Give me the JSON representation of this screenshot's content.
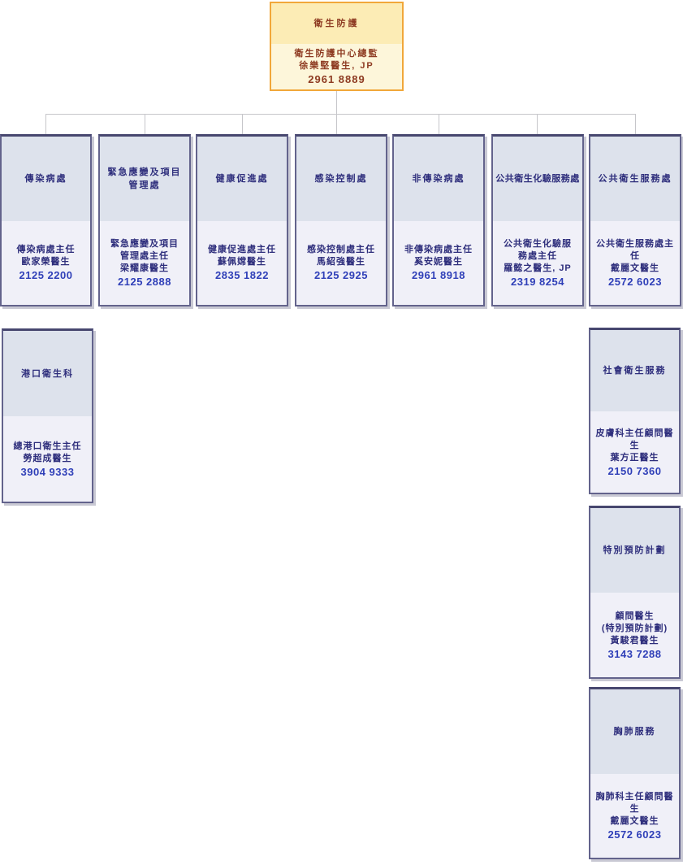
{
  "colors": {
    "director_border": "#f1a73a",
    "director_header_bg": "#fcecb5",
    "director_body_bg": "#fdf6da",
    "director_text": "#8e3b22",
    "node_border": "#63638c",
    "node_border_top": "#47476f",
    "node_header_bg": "#dde2ec",
    "node_body_bg": "#f0f0f8",
    "node_text": "#2e2e7c",
    "phone_text": "#2f3fb8",
    "connector": "#c6c6ca",
    "shadow": "#c9c9d4"
  },
  "nodes": {
    "director": {
      "title_lines": [
        "衛生防護"
      ],
      "body_lines": [
        "衛生防護中心總監",
        "徐樂堅醫生, JP",
        "2961 8889"
      ]
    },
    "b1": {
      "title_lines": [
        "傳染病處"
      ],
      "body_lines": [
        "傳染病處主任",
        "歐家榮醫生",
        "2125 2200"
      ]
    },
    "b2": {
      "title_lines": [
        "緊急應變及項目",
        "管理處"
      ],
      "body_lines": [
        "緊急應變及項目",
        "管理處主任",
        "梁耀康醫生",
        "2125 2888"
      ]
    },
    "b3": {
      "title_lines": [
        "健康促進處"
      ],
      "body_lines": [
        "健康促進處主任",
        "蘇佩嫦醫生",
        "2835 1822"
      ]
    },
    "b4": {
      "title_lines": [
        "感染控制處"
      ],
      "body_lines": [
        "感染控制處主任",
        "馬紹強醫生",
        "2125 2925"
      ]
    },
    "b5": {
      "title_lines": [
        "非傳染病處"
      ],
      "body_lines": [
        "非傳染病處主任",
        "奚安妮醫生",
        "2961 8918"
      ]
    },
    "b6": {
      "title_lines": [
        "公共衛生化驗服務處"
      ],
      "body_lines": [
        "公共衛生化驗服",
        "務處主任",
        "羅懿之醫生, JP",
        "2319 8254"
      ]
    },
    "b7": {
      "title_lines": [
        "公共衛生服務處"
      ],
      "body_lines": [
        "公共衛生服務處主任",
        "戴麗文醫生",
        "2572 6023"
      ]
    },
    "port": {
      "title_lines": [
        "港口衛生科"
      ],
      "body_lines": [
        "總港口衛生主任",
        "勞超成醫生",
        "3904 9333"
      ]
    },
    "social": {
      "title_lines": [
        "社會衛生服務"
      ],
      "body_lines": [
        "皮膚科主任顧問醫生",
        "葉方正醫生",
        "2150 7360"
      ]
    },
    "special": {
      "title_lines": [
        "特別預防計劃"
      ],
      "body_lines": [
        "顧問醫生",
        "(特別預防計劃)",
        "黃駿君醫生",
        "3143 7288"
      ]
    },
    "chest": {
      "title_lines": [
        "胸肺服務"
      ],
      "body_lines": [
        "胸肺科主任顧問醫生",
        "戴麗文醫生",
        "2572 6023"
      ]
    }
  }
}
